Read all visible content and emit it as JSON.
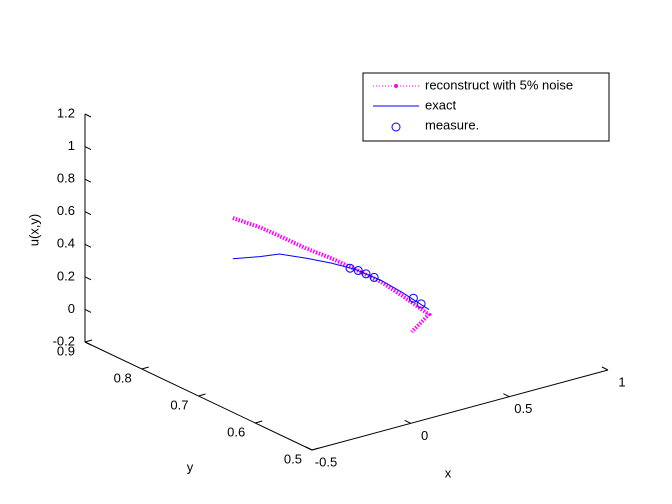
{
  "chart_data": {
    "type": "line3d",
    "xlabel": "x",
    "ylabel": "y",
    "zlabel": "u(x,y)",
    "xlim": [
      -0.5,
      1
    ],
    "xticks": [
      -0.5,
      0,
      0.5,
      1
    ],
    "ylim": [
      0.5,
      0.9
    ],
    "yticks": [
      0.5,
      0.6,
      0.7,
      0.8,
      0.9
    ],
    "zlim": [
      -0.2,
      1.2
    ],
    "zticks": [
      -0.2,
      0,
      0.2,
      0.4,
      0.6,
      0.8,
      1,
      1.2
    ],
    "legend": "top-right",
    "series": [
      {
        "name": "reconstruct with 5% noise",
        "color": "#ff00ff",
        "style": "dotted-dots",
        "x": [
          -0.01,
          0.07,
          0.14,
          0.22,
          0.3,
          0.38,
          0.455,
          0.53,
          0.61,
          0.58
        ],
        "y": [
          0.81,
          0.79,
          0.78,
          0.76,
          0.745,
          0.73,
          0.71,
          0.7,
          0.68,
          0.7
        ],
        "z": [
          0.55,
          0.5,
          0.44,
          0.37,
          0.31,
          0.24,
          0.17,
          0.08,
          -0.03,
          -0.16
        ]
      },
      {
        "name": "exact",
        "color": "#0000ff",
        "style": "solid",
        "x": [
          -0.01,
          0.07,
          0.14,
          0.22,
          0.3,
          0.38,
          0.455,
          0.53,
          0.61
        ],
        "y": [
          0.81,
          0.79,
          0.78,
          0.76,
          0.745,
          0.73,
          0.71,
          0.7,
          0.68
        ],
        "z": [
          0.3,
          0.32,
          0.33,
          0.31,
          0.28,
          0.24,
          0.18,
          0.1,
          0.0
        ]
      },
      {
        "name": "measure.",
        "color": "#0000ff",
        "style": "circles",
        "x": [
          0.36,
          0.387,
          0.412,
          0.436,
          0.56,
          0.585
        ],
        "y": [
          0.732,
          0.727,
          0.722,
          0.716,
          0.69,
          0.685
        ],
        "z": [
          0.25,
          0.235,
          0.215,
          0.195,
          0.07,
          0.035
        ]
      }
    ]
  }
}
